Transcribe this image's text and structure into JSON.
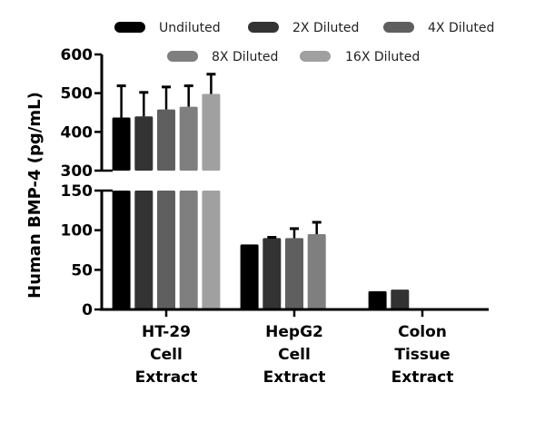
{
  "chart_data": {
    "type": "bar",
    "title": "",
    "xlabel": "",
    "ylabel": "Human BMP-4 (pg/mL)",
    "categories": [
      "HT-29 Cell Extract",
      "HepG2 Cell Extract",
      "Colon Tissue Extract"
    ],
    "category_lines": [
      [
        "HT-29",
        "Cell",
        "Extract"
      ],
      [
        "HepG2",
        "Cell",
        "Extract"
      ],
      [
        "Colon",
        "Tissue",
        "Extract"
      ]
    ],
    "series": [
      {
        "name": "Undiluted",
        "color": "#000000",
        "values": [
          437,
          82,
          23
        ],
        "error_upper": [
          519,
          null,
          null
        ]
      },
      {
        "name": "2X Diluted",
        "color": "#333333",
        "values": [
          440,
          90,
          25
        ],
        "error_upper": [
          502,
          91,
          null
        ]
      },
      {
        "name": "4X Diluted",
        "color": "#5f5f5f",
        "values": [
          458,
          90,
          null
        ],
        "error_upper": [
          516,
          102,
          null
        ]
      },
      {
        "name": "8X Diluted",
        "color": "#7f7f7f",
        "values": [
          465,
          95,
          null
        ],
        "error_upper": [
          519,
          110,
          null
        ]
      },
      {
        "name": "16X Diluted",
        "color": "#a0a0a0",
        "values": [
          498,
          null,
          null
        ],
        "error_upper": [
          549,
          null,
          null
        ]
      }
    ],
    "y_axis": {
      "broken": true,
      "lower_segment": {
        "range": [
          0,
          150
        ],
        "ticks": [
          0,
          50,
          100,
          150
        ]
      },
      "upper_segment": {
        "range": [
          300,
          600
        ],
        "ticks": [
          300,
          400,
          500,
          600
        ]
      }
    },
    "legend": {
      "position": "top",
      "rows": [
        [
          "Undiluted",
          "2X Diluted",
          "4X Diluted"
        ],
        [
          "8X Diluted",
          "16X Diluted"
        ]
      ]
    },
    "grid": false
  }
}
